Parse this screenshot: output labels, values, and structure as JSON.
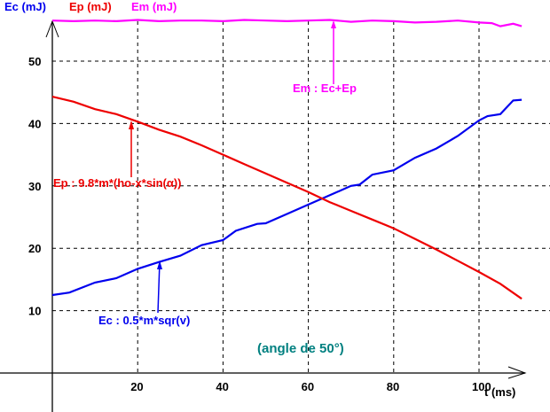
{
  "chart_data": {
    "type": "line",
    "title": "",
    "xlabel": "t (ms)",
    "ylabel": "",
    "xlim": [
      0,
      110
    ],
    "ylim": [
      0,
      57
    ],
    "x_ticks": [
      20,
      40,
      60,
      80,
      100
    ],
    "y_ticks": [
      10,
      20,
      30,
      40,
      50
    ],
    "grid": true,
    "legend": [
      "Ec (mJ)",
      "Ep (mJ)",
      "Em (mJ)"
    ],
    "legend_placement": "top-left",
    "colors": {
      "Ec": "#0000ee",
      "Ep": "#ee0000",
      "Em": "#ff00ff",
      "note": "#008080"
    },
    "series": [
      {
        "name": "Ec (mJ)",
        "key": "Ec",
        "x": [
          0,
          4,
          10,
          15,
          20,
          25,
          30,
          35,
          40,
          43,
          48,
          50,
          55,
          60,
          65,
          70,
          72,
          75,
          80,
          85,
          90,
          95,
          100,
          102,
          105,
          108,
          110
        ],
        "y": [
          12.5,
          12.9,
          14.5,
          15.2,
          16.7,
          17.8,
          18.8,
          20.5,
          21.3,
          22.8,
          23.9,
          24,
          25.5,
          27,
          28.5,
          30,
          30.2,
          31.8,
          32.5,
          34.5,
          36,
          38,
          40.5,
          41.2,
          41.5,
          43.7,
          43.8
        ]
      },
      {
        "name": "Ep (mJ)",
        "key": "Ep",
        "x": [
          0,
          5,
          10,
          15,
          20,
          25,
          30,
          35,
          40,
          45,
          50,
          55,
          60,
          65,
          70,
          75,
          80,
          85,
          90,
          95,
          100,
          105,
          110
        ],
        "y": [
          44.3,
          43.5,
          42.3,
          41.5,
          40.3,
          39,
          37.9,
          36.5,
          35,
          33.5,
          32,
          30.5,
          29,
          27.4,
          26,
          24.6,
          23.2,
          21.5,
          19.8,
          18,
          16.2,
          14.3,
          11.9
        ]
      },
      {
        "name": "Em (mJ)",
        "key": "Em",
        "x": [
          0,
          5,
          10,
          15,
          20,
          25,
          30,
          35,
          40,
          45,
          50,
          55,
          60,
          65,
          70,
          75,
          80,
          85,
          90,
          95,
          100,
          103,
          105,
          108,
          110
        ],
        "y": [
          56.5,
          56.4,
          56.5,
          56.4,
          56.6,
          56.4,
          56.5,
          56.5,
          56.4,
          56.6,
          56.5,
          56.4,
          56.5,
          56.6,
          56.3,
          56.5,
          56.4,
          56.2,
          56.3,
          56.5,
          56.2,
          56.1,
          55.6,
          56.0,
          55.6
        ]
      }
    ],
    "annotations": {
      "em": "Em : Ec+Ep",
      "ep": "Ep : 9.8*m*(ho-x*sin(α))",
      "ec": "Ec : 0.5*m*sqr(v)",
      "angle": "(angle de 50°)"
    }
  }
}
